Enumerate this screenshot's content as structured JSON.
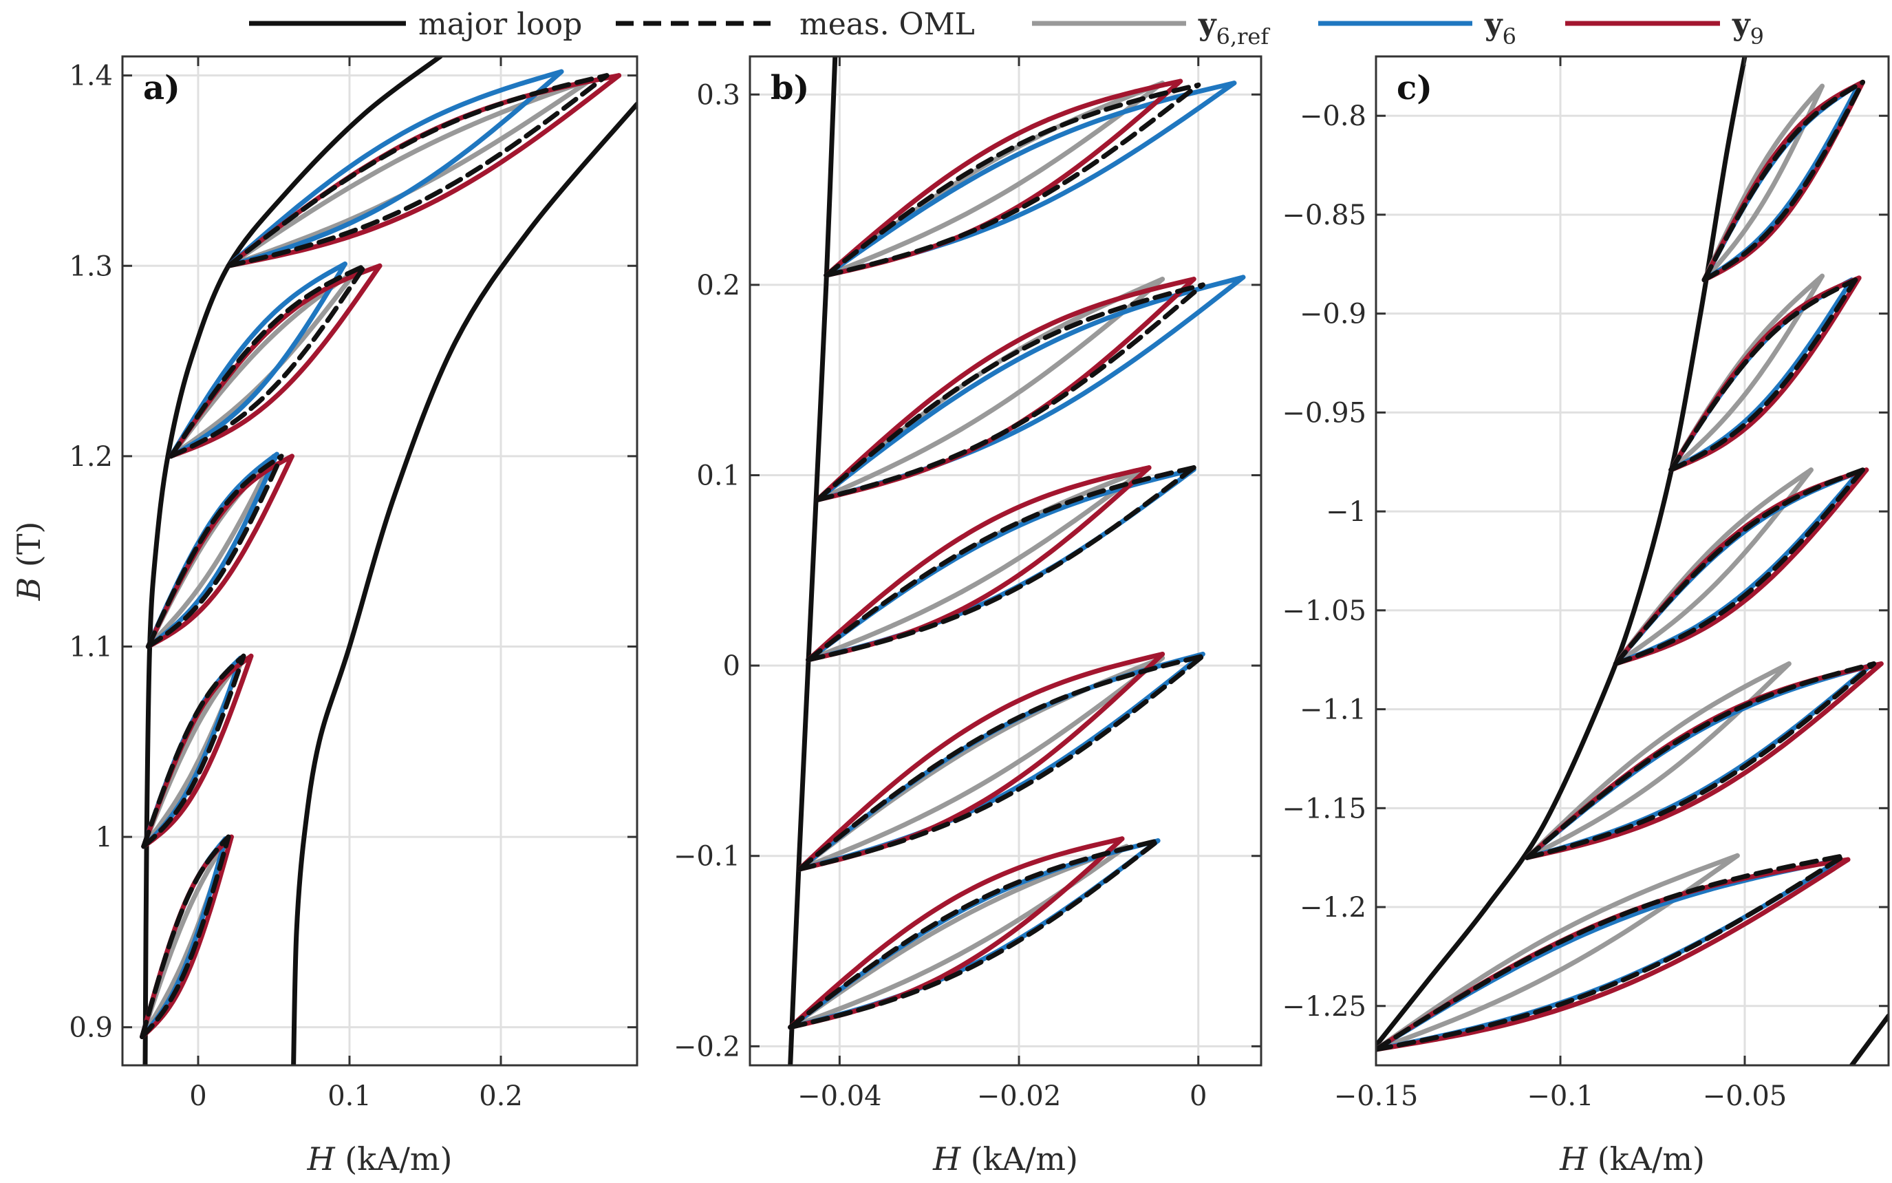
{
  "colors": {
    "major_loop": "#111111",
    "meas_oml": "#111111",
    "y6ref": "#999999",
    "y6": "#1f77c0",
    "y9": "#a3162f"
  },
  "legend": {
    "major_loop": "major loop",
    "meas_oml": "meas. OML",
    "y6ref_base": "y",
    "y6ref_sub": "6,ref",
    "y6_base": "y",
    "y6_sub": "6",
    "y9_base": "y",
    "y9_sub": "9"
  },
  "chart_data": [
    {
      "type": "line",
      "panel": "a)",
      "title": "",
      "xlabel_var": "H",
      "xlabel_unit": " (kA/m)",
      "ylabel_var": "B",
      "ylabel_unit": " (T)",
      "xlim": [
        -0.05,
        0.29
      ],
      "ylim": [
        0.88,
        1.41
      ],
      "xticks": [
        0,
        0.1,
        0.2
      ],
      "xtick_labels": [
        "0",
        "0.1",
        "0.2"
      ],
      "yticks": [
        0.9,
        1.0,
        1.1,
        1.2,
        1.3,
        1.4
      ],
      "ytick_labels": [
        "0.9",
        "1",
        "1.1",
        "1.2",
        "1.3",
        "1.4"
      ],
      "major_loop": [
        {
          "name": "ascending",
          "x": [
            -0.035,
            -0.034,
            -0.032,
            -0.028,
            -0.02,
            -0.005,
            0.02,
            0.06,
            0.11,
            0.16
          ],
          "y": [
            0.88,
            1.0,
            1.1,
            1.15,
            1.2,
            1.25,
            1.3,
            1.34,
            1.38,
            1.41
          ]
        },
        {
          "name": "descending",
          "x": [
            0.063,
            0.065,
            0.07,
            0.08,
            0.1,
            0.13,
            0.17,
            0.22,
            0.29
          ],
          "y": [
            0.88,
            0.95,
            1.0,
            1.05,
            1.1,
            1.18,
            1.26,
            1.32,
            1.385
          ]
        }
      ],
      "loops": [
        {
          "start": [
            -0.037,
            0.895
          ],
          "end": {
            "meas": [
              0.02,
              1.0
            ],
            "y6ref": [
              0.02,
              1.0
            ],
            "y6": [
              0.018,
              0.999
            ],
            "y9": [
              0.022,
              1.0
            ]
          }
        },
        {
          "start": [
            -0.036,
            0.995
          ],
          "end": {
            "meas": [
              0.03,
              1.095
            ],
            "y6ref": [
              0.03,
              1.095
            ],
            "y6": [
              0.028,
              1.094
            ],
            "y9": [
              0.035,
              1.095
            ]
          }
        },
        {
          "start": [
            -0.033,
            1.1
          ],
          "end": {
            "meas": [
              0.055,
              1.2
            ],
            "y6ref": [
              0.05,
              1.2
            ],
            "y6": [
              0.052,
              1.201
            ],
            "y9": [
              0.062,
              1.2
            ]
          }
        },
        {
          "start": [
            -0.018,
            1.2
          ],
          "end": {
            "meas": [
              0.11,
              1.3
            ],
            "y6ref": [
              0.105,
              1.298
            ],
            "y6": [
              0.097,
              1.301
            ],
            "y9": [
              0.12,
              1.3
            ]
          }
        },
        {
          "start": [
            0.02,
            1.3
          ],
          "end": {
            "meas": [
              0.27,
              1.4
            ],
            "y6ref": [
              0.26,
              1.398
            ],
            "y6": [
              0.24,
              1.402
            ],
            "y9": [
              0.278,
              1.4
            ]
          }
        }
      ]
    },
    {
      "type": "line",
      "panel": "b)",
      "title": "",
      "xlabel_var": "H",
      "xlabel_unit": " (kA/m)",
      "ylabel_var": "",
      "ylabel_unit": "",
      "xlim": [
        -0.05,
        0.007
      ],
      "ylim": [
        -0.21,
        0.32
      ],
      "xticks": [
        -0.04,
        -0.02,
        0
      ],
      "xtick_labels": [
        "−0.04",
        "−0.02",
        "0"
      ],
      "yticks": [
        -0.2,
        -0.1,
        0,
        0.1,
        0.2,
        0.3
      ],
      "ytick_labels": [
        "−0.2",
        "−0.1",
        "0",
        "0.1",
        "0.2",
        "0.3"
      ],
      "major_loop": [
        {
          "name": "ascending",
          "x": [
            -0.0455,
            -0.0445,
            -0.0435,
            -0.0425,
            -0.0415,
            -0.0405
          ],
          "y": [
            -0.21,
            -0.1,
            0.0,
            0.1,
            0.2,
            0.32
          ]
        }
      ],
      "loops": [
        {
          "start": [
            -0.0455,
            -0.19
          ],
          "end": {
            "meas": [
              -0.0045,
              -0.092
            ],
            "y6ref": [
              -0.008,
              -0.095
            ],
            "y6": [
              -0.0045,
              -0.092
            ],
            "y9": [
              -0.0085,
              -0.091
            ]
          }
        },
        {
          "start": [
            -0.0445,
            -0.107
          ],
          "end": {
            "meas": [
              0.0005,
              0.005
            ],
            "y6ref": [
              -0.004,
              0.004
            ],
            "y6": [
              0.0005,
              0.006
            ],
            "y9": [
              -0.004,
              0.006
            ]
          }
        },
        {
          "start": [
            -0.0435,
            0.003
          ],
          "end": {
            "meas": [
              -0.0005,
              0.104
            ],
            "y6ref": [
              -0.006,
              0.103
            ],
            "y6": [
              -0.0005,
              0.103
            ],
            "y9": [
              -0.0055,
              0.104
            ]
          }
        },
        {
          "start": [
            -0.0425,
            0.087
          ],
          "end": {
            "meas": [
              0.0005,
              0.2
            ],
            "y6ref": [
              -0.004,
              0.203
            ],
            "y6": [
              0.005,
              0.204
            ],
            "y9": [
              -0.0005,
              0.203
            ]
          }
        },
        {
          "start": [
            -0.0415,
            0.205
          ],
          "end": {
            "meas": [
              0.0,
              0.305
            ],
            "y6ref": [
              -0.004,
              0.306
            ],
            "y6": [
              0.004,
              0.306
            ],
            "y9": [
              -0.002,
              0.307
            ]
          }
        }
      ]
    },
    {
      "type": "line",
      "panel": "c)",
      "title": "",
      "xlabel_var": "H",
      "xlabel_unit": " (kA/m)",
      "ylabel_var": "",
      "ylabel_unit": "",
      "xlim": [
        -0.15,
        -0.011
      ],
      "ylim": [
        -1.28,
        -0.77
      ],
      "xticks": [
        -0.15,
        -0.1,
        -0.05
      ],
      "xtick_labels": [
        "−0.15",
        "−0.1",
        "−0.05"
      ],
      "yticks": [
        -1.25,
        -1.2,
        -1.15,
        -1.1,
        -1.05,
        -1.0,
        -0.95,
        -0.9,
        -0.85,
        -0.8
      ],
      "ytick_labels": [
        "−1.25",
        "−1.2",
        "−1.15",
        "−1.1",
        "−1.05",
        "−1",
        "−0.95",
        "−0.9",
        "−0.85",
        "−0.8"
      ],
      "major_loop": [
        {
          "name": "ascending",
          "x": [
            -0.15,
            -0.135,
            -0.12,
            -0.105,
            -0.09,
            -0.08,
            -0.07,
            -0.062,
            -0.055,
            -0.05
          ],
          "y": [
            -1.27,
            -1.235,
            -1.2,
            -1.16,
            -1.1,
            -1.05,
            -0.98,
            -0.9,
            -0.82,
            -0.77
          ]
        },
        {
          "name": "descending",
          "x": [
            -0.021,
            -0.011
          ],
          "y": [
            -1.28,
            -1.255
          ]
        }
      ],
      "loops": [
        {
          "start": [
            -0.15,
            -1.272
          ],
          "end": {
            "meas": [
              -0.023,
              -1.174
            ],
            "y6ref": [
              -0.052,
              -1.174
            ],
            "y6": [
              -0.024,
              -1.176
            ],
            "y9": [
              -0.022,
              -1.176
            ]
          }
        },
        {
          "start": [
            -0.109,
            -1.175
          ],
          "end": {
            "meas": [
              -0.015,
              -1.077
            ],
            "y6ref": [
              -0.038,
              -1.077
            ],
            "y6": [
              -0.016,
              -1.078
            ],
            "y9": [
              -0.013,
              -1.077
            ]
          }
        },
        {
          "start": [
            -0.085,
            -1.077
          ],
          "end": {
            "meas": [
              -0.018,
              -0.979
            ],
            "y6ref": [
              -0.032,
              -0.979
            ],
            "y6": [
              -0.019,
              -0.98
            ],
            "y9": [
              -0.017,
              -0.979
            ]
          }
        },
        {
          "start": [
            -0.07,
            -0.979
          ],
          "end": {
            "meas": [
              -0.02,
              -0.883
            ],
            "y6ref": [
              -0.029,
              -0.881
            ],
            "y6": [
              -0.021,
              -0.883
            ],
            "y9": [
              -0.019,
              -0.882
            ]
          }
        },
        {
          "start": [
            -0.061,
            -0.883
          ],
          "end": {
            "meas": [
              -0.018,
              -0.783
            ],
            "y6ref": [
              -0.029,
              -0.785
            ],
            "y6": [
              -0.019,
              -0.784
            ],
            "y9": [
              -0.018,
              -0.783
            ]
          }
        }
      ]
    }
  ]
}
